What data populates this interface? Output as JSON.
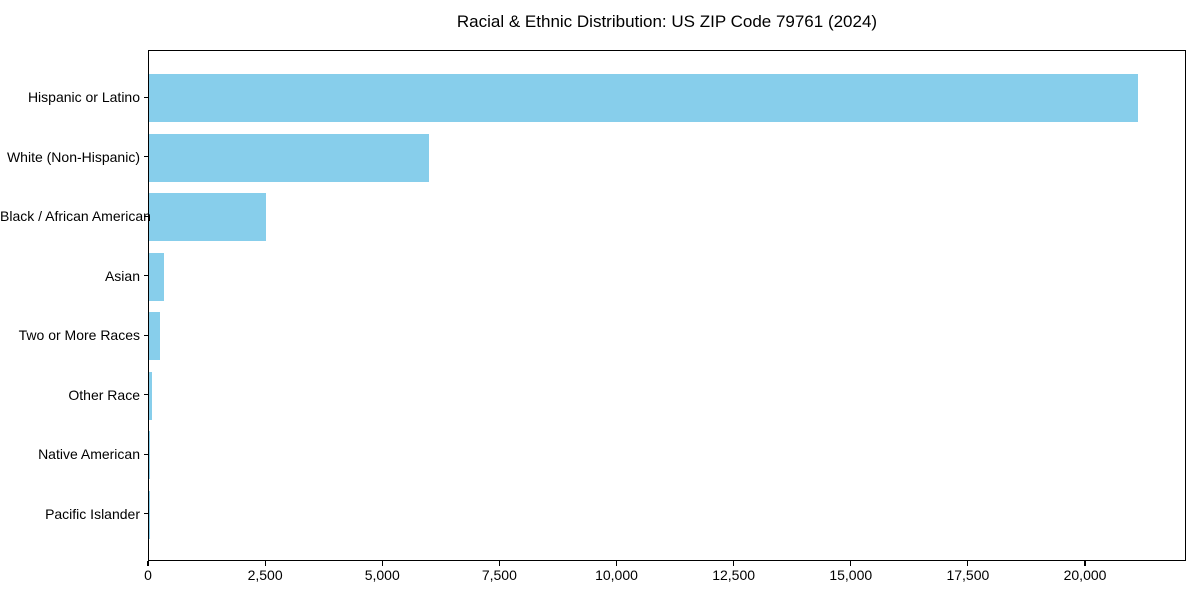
{
  "title": "Racial & Ethnic Distribution: US ZIP Code 79761 (2024)",
  "chart_data": {
    "type": "bar",
    "orientation": "horizontal",
    "title": "Racial & Ethnic Distribution: US ZIP Code 79761 (2024)",
    "xlabel": "",
    "ylabel": "",
    "categories": [
      "Hispanic or Latino",
      "White (Non-Hispanic)",
      "Black / African American",
      "Asian",
      "Two or More Races",
      "Other Race",
      "Native American",
      "Pacific Islander"
    ],
    "values": [
      21100,
      5980,
      2490,
      310,
      240,
      65,
      25,
      5
    ],
    "xlim": [
      0,
      22155
    ],
    "xticks": [
      0,
      2500,
      5000,
      7500,
      10000,
      12500,
      15000,
      17500,
      20000
    ],
    "xtick_labels": [
      "0",
      "2,500",
      "5,000",
      "7,500",
      "10,000",
      "12,500",
      "15,000",
      "17,500",
      "20,000"
    ],
    "bar_color": "#87CEEB",
    "grid": false,
    "legend": null
  }
}
